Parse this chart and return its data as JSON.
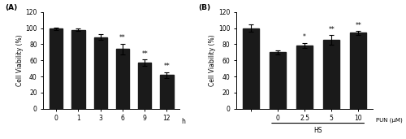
{
  "panel_A": {
    "categories": [
      "0",
      "1",
      "3",
      "6",
      "9",
      "12"
    ],
    "xlabel_suffix": "h",
    "values": [
      99.5,
      98.0,
      88.5,
      74.0,
      57.0,
      42.0
    ],
    "errors": [
      1.5,
      2.0,
      3.5,
      6.5,
      4.0,
      3.5
    ],
    "significance": [
      "",
      "",
      "",
      "**",
      "**",
      "**"
    ],
    "ylabel": "Cell Viability (%)",
    "ylim": [
      0,
      120
    ],
    "yticks": [
      0,
      20,
      40,
      60,
      80,
      100,
      120
    ],
    "bar_color": "#1a1a1a",
    "panel_label": "(A)"
  },
  "panel_B": {
    "categories": [
      "",
      "0",
      "2.5",
      "5",
      "10"
    ],
    "xlabel_suffix": "PUN (μM)",
    "hs_label": "HS",
    "values": [
      100.0,
      70.0,
      78.5,
      85.0,
      94.0
    ],
    "errors": [
      4.5,
      2.5,
      3.0,
      6.0,
      2.5
    ],
    "significance": [
      "",
      "",
      "*",
      "**",
      "**"
    ],
    "ylabel": "Cell Viability (%)",
    "ylim": [
      0,
      120
    ],
    "yticks": [
      0,
      20,
      40,
      60,
      80,
      100,
      120
    ],
    "bar_color": "#1a1a1a",
    "panel_label": "(B)"
  },
  "figure_width": 5.0,
  "figure_height": 1.71,
  "dpi": 100
}
